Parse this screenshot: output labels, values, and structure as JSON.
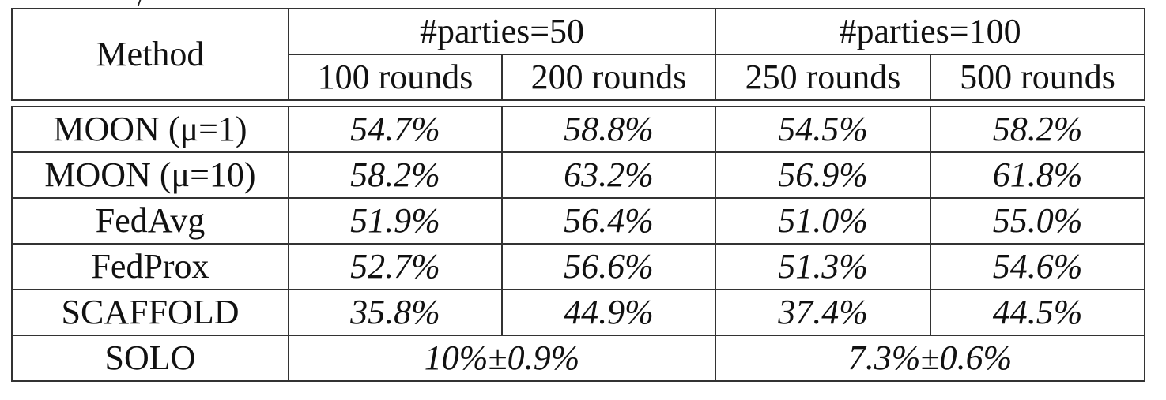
{
  "table": {
    "header": {
      "method": "Method",
      "group1": "#parties=50",
      "group2": "#parties=100",
      "sub": [
        "100 rounds",
        "200 rounds",
        "250 rounds",
        "500 rounds"
      ]
    },
    "rows": [
      {
        "method": "MOON (μ=1)",
        "values": [
          "54.7%",
          "58.8%",
          "54.5%",
          "58.2%"
        ],
        "bold": false
      },
      {
        "method": "MOON (μ=10)",
        "values": [
          "58.2%",
          "63.2%",
          "56.9%",
          "61.8%"
        ],
        "bold": true
      },
      {
        "method": "FedAvg",
        "values": [
          "51.9%",
          "56.4%",
          "51.0%",
          "55.0%"
        ],
        "bold": false
      },
      {
        "method": "FedProx",
        "values": [
          "52.7%",
          "56.6%",
          "51.3%",
          "54.6%"
        ],
        "bold": false
      },
      {
        "method": "SCAFFOLD",
        "values": [
          "35.8%",
          "44.9%",
          "37.4%",
          "44.5%"
        ],
        "bold": false
      }
    ],
    "solo": {
      "method": "SOLO",
      "group1": "10%±0.9%",
      "group2": "7.3%±0.6%"
    }
  }
}
